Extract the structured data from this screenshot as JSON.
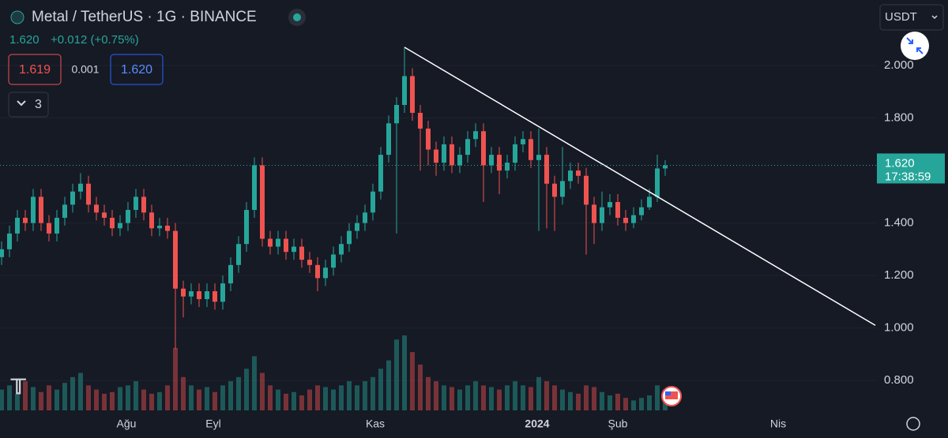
{
  "header": {
    "title": "Metal / TetherUS · 1G · BINANCE",
    "price": "1.620",
    "change": "+0.012 (+0.75%)",
    "bid": "1.619",
    "spread": "0.001",
    "ask": "1.620",
    "indicators": "3",
    "currency": "USDT"
  },
  "chart_data": {
    "type": "candlestick",
    "open": [
      1.27,
      1.3,
      1.36,
      1.42,
      1.4,
      1.5,
      1.4,
      1.36,
      1.42,
      1.47,
      1.52,
      1.55,
      1.47,
      1.44,
      1.42,
      1.38,
      1.4,
      1.45,
      1.5,
      1.44,
      1.38,
      1.39,
      1.37,
      1.15,
      1.12,
      1.14,
      1.11,
      1.14,
      1.1,
      1.17,
      1.24,
      1.32,
      1.45,
      1.62,
      1.34,
      1.31,
      1.34,
      1.29,
      1.31,
      1.26,
      1.24,
      1.19,
      1.23,
      1.28,
      1.32,
      1.37,
      1.4,
      1.44,
      1.52,
      1.66,
      1.78,
      1.85,
      1.96,
      1.82,
      1.76,
      1.68,
      1.63,
      1.7,
      1.62,
      1.66,
      1.72,
      1.75,
      1.62,
      1.66,
      1.6,
      1.63,
      1.7,
      1.72,
      1.64,
      1.66,
      1.55,
      1.5,
      1.56,
      1.6,
      1.58,
      1.47,
      1.4,
      1.46,
      1.48,
      1.42,
      1.4,
      1.43,
      1.46,
      1.5,
      1.608
    ],
    "high": [
      1.33,
      1.39,
      1.45,
      1.45,
      1.53,
      1.53,
      1.43,
      1.45,
      1.5,
      1.55,
      1.59,
      1.58,
      1.5,
      1.47,
      1.45,
      1.43,
      1.48,
      1.53,
      1.53,
      1.47,
      1.42,
      1.42,
      1.4,
      1.18,
      1.17,
      1.17,
      1.17,
      1.17,
      1.2,
      1.27,
      1.35,
      1.48,
      1.65,
      1.65,
      1.37,
      1.37,
      1.37,
      1.34,
      1.34,
      1.29,
      1.27,
      1.26,
      1.31,
      1.35,
      1.4,
      1.43,
      1.47,
      1.55,
      1.69,
      1.81,
      1.88,
      2.07,
      1.99,
      1.85,
      1.79,
      1.71,
      1.73,
      1.73,
      1.69,
      1.75,
      1.78,
      1.78,
      1.69,
      1.69,
      1.66,
      1.73,
      1.75,
      1.75,
      1.76,
      1.69,
      1.58,
      1.69,
      1.63,
      1.63,
      1.61,
      1.5,
      1.52,
      1.51,
      1.51,
      1.45,
      1.46,
      1.49,
      1.53,
      1.66,
      1.64
    ],
    "low": [
      1.24,
      1.27,
      1.33,
      1.37,
      1.37,
      1.37,
      1.33,
      1.33,
      1.39,
      1.44,
      1.49,
      1.44,
      1.41,
      1.39,
      1.35,
      1.35,
      1.37,
      1.42,
      1.41,
      1.35,
      1.35,
      1.34,
      0.92,
      1.04,
      1.09,
      1.08,
      1.08,
      1.07,
      1.07,
      1.14,
      1.21,
      1.29,
      1.42,
      1.31,
      1.28,
      1.28,
      1.26,
      1.26,
      1.23,
      1.21,
      1.14,
      1.16,
      1.2,
      1.25,
      1.29,
      1.34,
      1.37,
      1.41,
      1.49,
      1.63,
      1.36,
      1.82,
      1.79,
      1.6,
      1.62,
      1.58,
      1.6,
      1.59,
      1.59,
      1.63,
      1.69,
      1.48,
      1.59,
      1.51,
      1.57,
      1.6,
      1.67,
      1.61,
      1.37,
      1.38,
      1.37,
      1.47,
      1.53,
      1.55,
      1.28,
      1.32,
      1.37,
      1.43,
      1.39,
      1.37,
      1.38,
      1.41,
      1.45,
      1.48,
      1.58
    ],
    "close": [
      1.3,
      1.36,
      1.42,
      1.4,
      1.5,
      1.4,
      1.36,
      1.42,
      1.47,
      1.52,
      1.55,
      1.47,
      1.44,
      1.42,
      1.38,
      1.4,
      1.45,
      1.5,
      1.44,
      1.38,
      1.39,
      1.37,
      1.15,
      1.12,
      1.14,
      1.11,
      1.14,
      1.1,
      1.17,
      1.24,
      1.32,
      1.45,
      1.62,
      1.34,
      1.31,
      1.34,
      1.29,
      1.31,
      1.26,
      1.24,
      1.19,
      1.23,
      1.28,
      1.32,
      1.37,
      1.4,
      1.44,
      1.52,
      1.66,
      1.78,
      1.85,
      1.96,
      1.82,
      1.76,
      1.68,
      1.63,
      1.7,
      1.62,
      1.66,
      1.72,
      1.75,
      1.62,
      1.66,
      1.6,
      1.63,
      1.7,
      1.72,
      1.64,
      1.66,
      1.55,
      1.5,
      1.56,
      1.6,
      1.58,
      1.47,
      1.4,
      1.46,
      1.48,
      1.42,
      1.4,
      1.43,
      1.46,
      1.5,
      1.608,
      1.62
    ],
    "volume": [
      25,
      30,
      20,
      35,
      28,
      22,
      30,
      25,
      33,
      40,
      45,
      30,
      25,
      20,
      22,
      28,
      30,
      35,
      25,
      20,
      22,
      30,
      75,
      40,
      30,
      25,
      28,
      22,
      30,
      35,
      40,
      50,
      65,
      45,
      30,
      25,
      20,
      22,
      18,
      25,
      30,
      28,
      25,
      30,
      35,
      30,
      35,
      40,
      50,
      60,
      85,
      90,
      70,
      55,
      40,
      35,
      30,
      28,
      25,
      30,
      35,
      30,
      28,
      25,
      30,
      35,
      30,
      28,
      40,
      35,
      30,
      25,
      22,
      20,
      30,
      28,
      22,
      18,
      20,
      15,
      12,
      15,
      18,
      30,
      25
    ],
    "up_color": "#26a69a",
    "down_color": "#ef5350",
    "ylim": [
      0.686,
      2.25
    ],
    "yticks": [
      {
        "value": 0.8,
        "label": "0.800"
      },
      {
        "value": 1,
        "label": "1.000"
      },
      {
        "value": 1.2,
        "label": "1.200"
      },
      {
        "value": 1.4,
        "label": "1.400"
      },
      {
        "value": 1.8,
        "label": "1.800"
      },
      {
        "value": 2,
        "label": "2.000"
      }
    ],
    "x_labels": [
      "Ağu",
      "Eyl",
      "Kas",
      "2024",
      "Şub",
      "Nis"
    ],
    "last_price": {
      "value": 1.62,
      "label": "1.620",
      "countdown": "17:38:59"
    },
    "trendline": [
      2.07,
      1.01
    ]
  }
}
